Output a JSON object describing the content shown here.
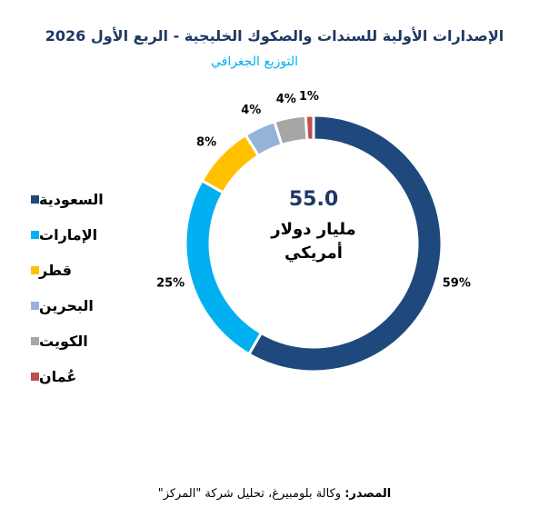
{
  "header": {
    "title": "الإصدارات الأولية للسندات والصكوك الخليجية - الربع الأول 2026",
    "subtitle": "التوزيع الجغرافي"
  },
  "center": {
    "value": "55.0",
    "unit_line1": "مليار دولار",
    "unit_line2": "أمريكي"
  },
  "source": {
    "label": "المصدر:",
    "text": " وكالة بلومبيرغ، تحليل شركة \"المركز\""
  },
  "chart_data": {
    "type": "pie",
    "donut": true,
    "total": 55.0,
    "total_unit": "مليار دولار أمريكي",
    "categories": [
      "السعودية",
      "الإمارات",
      "قطر",
      "البحرين",
      "الكويت",
      "عُمان"
    ],
    "values": [
      59,
      25,
      8,
      4,
      4,
      1
    ],
    "labels": [
      "59%",
      "25%",
      "8%",
      "4%",
      "4%",
      "1%"
    ],
    "colors": [
      "#1f497d",
      "#00b0f0",
      "#ffc000",
      "#95b3d7",
      "#a6a6a6",
      "#c0504d"
    ],
    "legend_position": "left"
  }
}
